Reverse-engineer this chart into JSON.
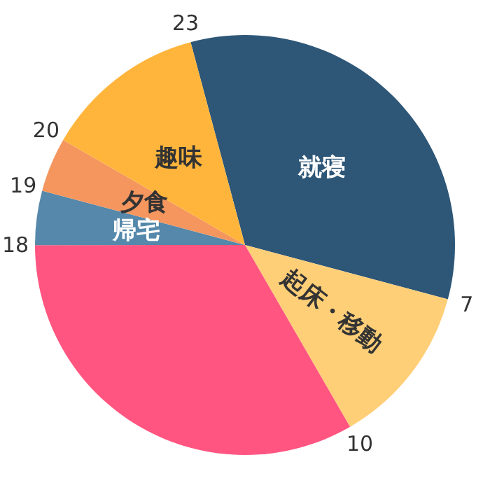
{
  "chart_data": {
    "type": "pie",
    "categories": [
      "就寝",
      "起床・移動",
      null,
      "帰宅",
      "夕食",
      "趣味"
    ],
    "values": [
      33.33,
      12.5,
      33.33,
      4.17,
      4.17,
      12.5
    ],
    "colors": [
      "#2d5677",
      "#ffcf78",
      "#ff5580",
      "#5588aa",
      "#f4965e",
      "#ffb53c"
    ],
    "annotations": [
      "23",
      "7",
      "10",
      "18",
      "19",
      "20"
    ],
    "legend": false
  }
}
